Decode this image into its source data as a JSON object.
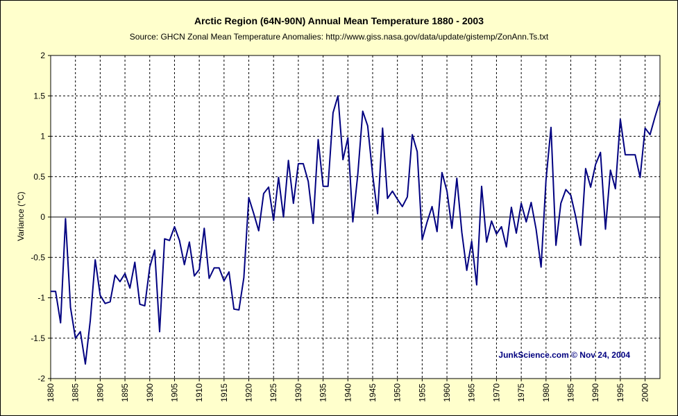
{
  "chart_data": {
    "type": "line",
    "title": "Arctic Region (64N-90N) Annual Mean Temperature 1880 - 2003",
    "subtitle": "Source: GHCN Zonal Mean Temperature Anomalies: http://www.giss.nasa.gov/data/update/gistemp/ZonAnn.Ts.txt",
    "xlabel": "",
    "ylabel": "Variance (°C)",
    "xlim": [
      1880,
      2003
    ],
    "ylim": [
      -2,
      2
    ],
    "yticks": [
      "2",
      "1.5",
      "1",
      "0.5",
      "0",
      "-0.5",
      "-1",
      "-1.5",
      "-2"
    ],
    "ytick_values": [
      2,
      1.5,
      1,
      0.5,
      0,
      -0.5,
      -1,
      -1.5,
      -2
    ],
    "xticks": [
      1880,
      1885,
      1890,
      1895,
      1900,
      1905,
      1910,
      1915,
      1920,
      1925,
      1930,
      1935,
      1940,
      1945,
      1950,
      1955,
      1960,
      1965,
      1970,
      1975,
      1980,
      1985,
      1990,
      1995,
      2000
    ],
    "grid": true,
    "series_color": "#000080",
    "annotation": "JunkScience.com © Nov 24, 2004",
    "series": [
      {
        "x": [
          1880,
          1881,
          1882,
          1883,
          1884,
          1885,
          1886,
          1887,
          1888,
          1889,
          1890,
          1891,
          1892,
          1893,
          1894,
          1895,
          1896,
          1897,
          1898,
          1899,
          1900,
          1901,
          1902,
          1903,
          1904,
          1905,
          1906,
          1907,
          1908,
          1909,
          1910,
          1911,
          1912,
          1913,
          1914,
          1915,
          1916,
          1917,
          1918,
          1919,
          1920,
          1921,
          1922,
          1923,
          1924,
          1925,
          1926,
          1927,
          1928,
          1929,
          1930,
          1931,
          1932,
          1933,
          1934,
          1935,
          1936,
          1937,
          1938,
          1939,
          1940,
          1941,
          1942,
          1943,
          1944,
          1945,
          1946,
          1947,
          1948,
          1949,
          1950,
          1951,
          1952,
          1953,
          1954,
          1955,
          1956,
          1957,
          1958,
          1959,
          1960,
          1961,
          1962,
          1963,
          1964,
          1965,
          1966,
          1967,
          1968,
          1969,
          1970,
          1971,
          1972,
          1973,
          1974,
          1975,
          1976,
          1977,
          1978,
          1979,
          1980,
          1981,
          1982,
          1983,
          1984,
          1985,
          1986,
          1987,
          1988,
          1989,
          1990,
          1991,
          1992,
          1993,
          1994,
          1995,
          1996,
          1997,
          1998,
          1999,
          2000,
          2001,
          2002,
          2003
        ],
        "values": [
          -0.92,
          -0.92,
          -1.31,
          -0.02,
          -1.12,
          -1.5,
          -1.42,
          -1.82,
          -1.28,
          -0.53,
          -0.97,
          -1.07,
          -1.05,
          -0.72,
          -0.8,
          -0.7,
          -0.88,
          -0.56,
          -1.08,
          -1.1,
          -0.62,
          -0.41,
          -1.42,
          -0.27,
          -0.29,
          -0.12,
          -0.29,
          -0.59,
          -0.31,
          -0.73,
          -0.65,
          -0.14,
          -0.76,
          -0.63,
          -0.63,
          -0.79,
          -0.68,
          -1.14,
          -1.15,
          -0.75,
          0.24,
          0.04,
          -0.17,
          0.29,
          0.37,
          -0.04,
          0.49,
          0.0,
          0.7,
          0.17,
          0.66,
          0.66,
          0.44,
          -0.08,
          0.96,
          0.38,
          0.38,
          1.29,
          1.5,
          0.71,
          0.98,
          -0.06,
          0.53,
          1.31,
          1.13,
          0.52,
          0.04,
          1.1,
          0.23,
          0.32,
          0.22,
          0.13,
          0.25,
          1.02,
          0.81,
          -0.28,
          -0.06,
          0.13,
          -0.18,
          0.55,
          0.32,
          -0.14,
          0.48,
          -0.19,
          -0.66,
          -0.3,
          -0.84,
          0.38,
          -0.31,
          -0.05,
          -0.21,
          -0.12,
          -0.37,
          0.12,
          -0.2,
          0.17,
          -0.06,
          0.18,
          -0.15,
          -0.62,
          0.46,
          1.11,
          -0.35,
          0.17,
          0.34,
          0.27,
          0.0,
          -0.35,
          0.6,
          0.37,
          0.65,
          0.8,
          -0.15,
          0.58,
          0.35,
          1.21,
          0.77,
          0.77,
          0.77,
          0.49,
          1.1,
          1.02,
          1.24,
          1.44
        ]
      }
    ]
  }
}
